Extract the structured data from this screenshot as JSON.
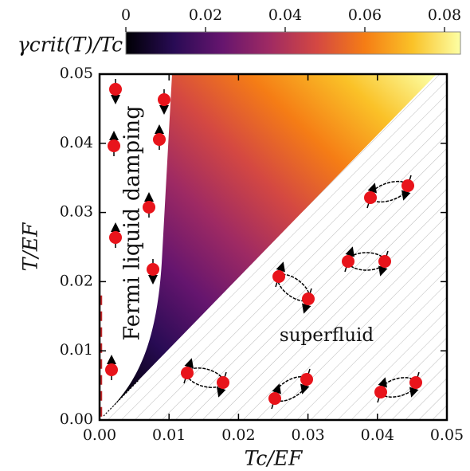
{
  "chart_data": {
    "type": "heatmap",
    "xlabel": "Tc/EF",
    "ylabel": "T/EF",
    "xlim": [
      0,
      0.05
    ],
    "ylim": [
      0,
      0.05
    ],
    "xticks": [
      {
        "value": 0,
        "label": "0.00"
      },
      {
        "value": 0.01,
        "label": "0.01"
      },
      {
        "value": 0.02,
        "label": "0.02"
      },
      {
        "value": 0.03,
        "label": "0.03"
      },
      {
        "value": 0.04,
        "label": "0.04"
      },
      {
        "value": 0.05,
        "label": "0.05"
      }
    ],
    "yticks": [
      {
        "value": 0,
        "label": "0.00"
      },
      {
        "value": 0.01,
        "label": "0.01"
      },
      {
        "value": 0.02,
        "label": "0.02"
      },
      {
        "value": 0.03,
        "label": "0.03"
      },
      {
        "value": 0.04,
        "label": "0.04"
      },
      {
        "value": 0.05,
        "label": "0.05"
      }
    ],
    "colormap": "inferno",
    "colorbar": {
      "label": "γcrit(T)/Tc",
      "lim": [
        0,
        0.084
      ],
      "ticks": [
        0,
        0.02,
        0.04,
        0.06,
        0.08
      ]
    },
    "annotations": [
      "Fermi liquid damping",
      "superfluid"
    ]
  }
}
